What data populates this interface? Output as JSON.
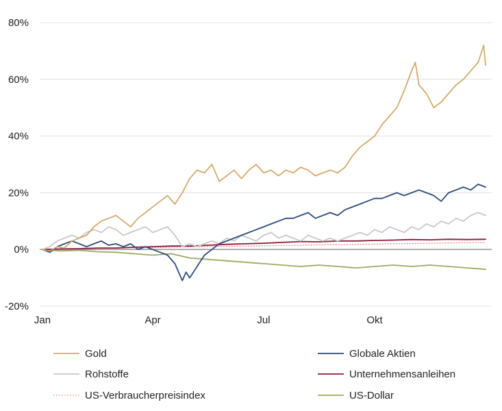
{
  "chart_data": {
    "type": "line",
    "x_ticks": [
      "Jan",
      "Apr",
      "Jul",
      "Okt"
    ],
    "y_ticks": [
      {
        "value": 80,
        "label": "80%",
        "color": "#222222"
      },
      {
        "value": 60,
        "label": "60%",
        "color": "#222222"
      },
      {
        "value": 40,
        "label": "40%",
        "color": "#222222"
      },
      {
        "value": 20,
        "label": "20%",
        "color": "#222222"
      },
      {
        "value": 0,
        "label": "0%",
        "color": "#222222"
      },
      {
        "value": -20,
        "label": "-20%",
        "color": "#e8201c"
      }
    ],
    "ylim": [
      -20,
      80
    ],
    "xlim": [
      0,
      12
    ],
    "grid": true,
    "legend_position": "bottom",
    "series": [
      {
        "name": "Gold",
        "color": "#d4a96a",
        "style": "solid",
        "points": [
          [
            0,
            0
          ],
          [
            0.2,
            -0.5
          ],
          [
            0.4,
            1
          ],
          [
            0.6,
            0.5
          ],
          [
            0.8,
            3
          ],
          [
            1.0,
            4
          ],
          [
            1.2,
            5
          ],
          [
            1.4,
            8
          ],
          [
            1.6,
            10
          ],
          [
            1.8,
            11
          ],
          [
            2.0,
            12
          ],
          [
            2.2,
            10
          ],
          [
            2.4,
            8
          ],
          [
            2.6,
            11
          ],
          [
            2.8,
            13
          ],
          [
            3.0,
            15
          ],
          [
            3.2,
            17
          ],
          [
            3.4,
            19
          ],
          [
            3.6,
            16
          ],
          [
            3.8,
            20
          ],
          [
            4.0,
            25
          ],
          [
            4.2,
            28
          ],
          [
            4.4,
            27
          ],
          [
            4.6,
            30
          ],
          [
            4.8,
            24
          ],
          [
            5.0,
            26
          ],
          [
            5.2,
            28
          ],
          [
            5.4,
            25
          ],
          [
            5.6,
            28
          ],
          [
            5.8,
            30
          ],
          [
            6.0,
            27
          ],
          [
            6.2,
            28
          ],
          [
            6.4,
            26
          ],
          [
            6.6,
            28
          ],
          [
            6.8,
            27
          ],
          [
            7.0,
            29
          ],
          [
            7.2,
            28
          ],
          [
            7.4,
            26
          ],
          [
            7.6,
            27
          ],
          [
            7.8,
            28
          ],
          [
            8.0,
            27
          ],
          [
            8.2,
            29
          ],
          [
            8.4,
            33
          ],
          [
            8.6,
            36
          ],
          [
            8.8,
            38
          ],
          [
            9.0,
            40
          ],
          [
            9.2,
            44
          ],
          [
            9.4,
            47
          ],
          [
            9.6,
            50
          ],
          [
            9.8,
            56
          ],
          [
            10.0,
            63
          ],
          [
            10.1,
            66
          ],
          [
            10.2,
            58
          ],
          [
            10.4,
            55
          ],
          [
            10.6,
            50
          ],
          [
            10.8,
            52
          ],
          [
            11.0,
            55
          ],
          [
            11.2,
            58
          ],
          [
            11.4,
            60
          ],
          [
            11.6,
            63
          ],
          [
            11.8,
            66
          ],
          [
            11.95,
            72
          ],
          [
            12.0,
            65
          ]
        ]
      },
      {
        "name": "Globale Aktien",
        "color": "#2c4a78",
        "style": "solid",
        "points": [
          [
            0,
            0
          ],
          [
            0.2,
            -1
          ],
          [
            0.4,
            1
          ],
          [
            0.6,
            2
          ],
          [
            0.8,
            3
          ],
          [
            1.0,
            2
          ],
          [
            1.2,
            1
          ],
          [
            1.4,
            2
          ],
          [
            1.6,
            3
          ],
          [
            1.8,
            1.5
          ],
          [
            2.0,
            2
          ],
          [
            2.2,
            1
          ],
          [
            2.4,
            2
          ],
          [
            2.6,
            0
          ],
          [
            2.8,
            1
          ],
          [
            3.0,
            0
          ],
          [
            3.2,
            -1
          ],
          [
            3.4,
            -2
          ],
          [
            3.6,
            -5
          ],
          [
            3.8,
            -11
          ],
          [
            3.9,
            -8
          ],
          [
            4.0,
            -10
          ],
          [
            4.2,
            -6
          ],
          [
            4.4,
            -2
          ],
          [
            4.6,
            0
          ],
          [
            4.8,
            2
          ],
          [
            5.0,
            3
          ],
          [
            5.2,
            4
          ],
          [
            5.4,
            5
          ],
          [
            5.6,
            6
          ],
          [
            5.8,
            7
          ],
          [
            6.0,
            8
          ],
          [
            6.2,
            9
          ],
          [
            6.4,
            10
          ],
          [
            6.6,
            11
          ],
          [
            6.8,
            11
          ],
          [
            7.0,
            12
          ],
          [
            7.2,
            13
          ],
          [
            7.4,
            11
          ],
          [
            7.6,
            12
          ],
          [
            7.8,
            13
          ],
          [
            8.0,
            12
          ],
          [
            8.2,
            14
          ],
          [
            8.4,
            15
          ],
          [
            8.6,
            16
          ],
          [
            8.8,
            17
          ],
          [
            9.0,
            18
          ],
          [
            9.2,
            18
          ],
          [
            9.4,
            19
          ],
          [
            9.6,
            20
          ],
          [
            9.8,
            19
          ],
          [
            10.0,
            20
          ],
          [
            10.2,
            21
          ],
          [
            10.4,
            20
          ],
          [
            10.6,
            19
          ],
          [
            10.8,
            17
          ],
          [
            11.0,
            20
          ],
          [
            11.2,
            21
          ],
          [
            11.4,
            22
          ],
          [
            11.6,
            21
          ],
          [
            11.8,
            23
          ],
          [
            12.0,
            22
          ]
        ]
      },
      {
        "name": "Rohstoffe",
        "color": "#c8c8c8",
        "style": "solid",
        "points": [
          [
            0,
            0
          ],
          [
            0.2,
            1
          ],
          [
            0.4,
            3
          ],
          [
            0.6,
            4
          ],
          [
            0.8,
            5
          ],
          [
            1.0,
            4
          ],
          [
            1.2,
            6
          ],
          [
            1.4,
            7
          ],
          [
            1.6,
            6
          ],
          [
            1.8,
            8
          ],
          [
            2.0,
            7
          ],
          [
            2.2,
            5
          ],
          [
            2.4,
            6
          ],
          [
            2.6,
            7
          ],
          [
            2.8,
            8
          ],
          [
            3.0,
            6
          ],
          [
            3.2,
            7
          ],
          [
            3.4,
            8
          ],
          [
            3.6,
            5
          ],
          [
            3.8,
            1
          ],
          [
            4.0,
            2
          ],
          [
            4.2,
            1
          ],
          [
            4.4,
            2
          ],
          [
            4.6,
            3
          ],
          [
            4.8,
            2
          ],
          [
            5.0,
            4
          ],
          [
            5.2,
            3
          ],
          [
            5.4,
            5
          ],
          [
            5.6,
            4
          ],
          [
            5.8,
            3
          ],
          [
            6.0,
            5
          ],
          [
            6.2,
            6
          ],
          [
            6.4,
            4
          ],
          [
            6.6,
            5
          ],
          [
            6.8,
            4
          ],
          [
            7.0,
            3
          ],
          [
            7.2,
            5
          ],
          [
            7.4,
            4
          ],
          [
            7.6,
            3
          ],
          [
            7.8,
            4
          ],
          [
            8.0,
            3
          ],
          [
            8.2,
            4
          ],
          [
            8.4,
            5
          ],
          [
            8.6,
            6
          ],
          [
            8.8,
            5
          ],
          [
            9.0,
            7
          ],
          [
            9.2,
            6
          ],
          [
            9.4,
            8
          ],
          [
            9.6,
            7
          ],
          [
            9.8,
            6
          ],
          [
            10.0,
            8
          ],
          [
            10.2,
            7
          ],
          [
            10.4,
            9
          ],
          [
            10.6,
            8
          ],
          [
            10.8,
            10
          ],
          [
            11.0,
            9
          ],
          [
            11.2,
            11
          ],
          [
            11.4,
            10
          ],
          [
            11.6,
            12
          ],
          [
            11.8,
            13
          ],
          [
            12.0,
            12
          ]
        ]
      },
      {
        "name": "Unternehmensanleihen",
        "color": "#8b1a3a",
        "style": "solid",
        "points": [
          [
            0,
            0
          ],
          [
            0.5,
            0.2
          ],
          [
            1.0,
            0.3
          ],
          [
            1.5,
            0.5
          ],
          [
            2.0,
            0.5
          ],
          [
            2.5,
            0.8
          ],
          [
            3.0,
            1
          ],
          [
            3.5,
            1.2
          ],
          [
            4.0,
            1.2
          ],
          [
            4.5,
            1.5
          ],
          [
            5.0,
            1.8
          ],
          [
            5.5,
            2
          ],
          [
            6.0,
            2.2
          ],
          [
            6.5,
            2.5
          ],
          [
            7.0,
            2.8
          ],
          [
            7.5,
            2.7
          ],
          [
            8.0,
            3
          ],
          [
            8.5,
            3
          ],
          [
            9.0,
            3.2
          ],
          [
            9.5,
            3.3
          ],
          [
            10.0,
            3.5
          ],
          [
            10.5,
            3.4
          ],
          [
            11.0,
            3.6
          ],
          [
            11.5,
            3.5
          ],
          [
            12.0,
            3.6
          ]
        ]
      },
      {
        "name": "US-Verbraucherpreisindex",
        "color": "#f08a8a",
        "style": "dotted",
        "points": [
          [
            0,
            0
          ],
          [
            2,
            0.5
          ],
          [
            4,
            0.9
          ],
          [
            6,
            1.3
          ],
          [
            8,
            1.7
          ],
          [
            10,
            2.1
          ],
          [
            12,
            2.5
          ]
        ]
      },
      {
        "name": "US-Dollar",
        "color": "#9aab5f",
        "style": "solid",
        "points": [
          [
            0,
            0
          ],
          [
            0.5,
            -0.5
          ],
          [
            1.0,
            -0.3
          ],
          [
            1.5,
            -0.8
          ],
          [
            2.0,
            -1
          ],
          [
            2.5,
            -1.5
          ],
          [
            3.0,
            -2
          ],
          [
            3.5,
            -1.5
          ],
          [
            4.0,
            -3
          ],
          [
            4.5,
            -3.5
          ],
          [
            5.0,
            -4
          ],
          [
            5.5,
            -4.5
          ],
          [
            6.0,
            -5
          ],
          [
            6.5,
            -5.5
          ],
          [
            7.0,
            -6
          ],
          [
            7.5,
            -5.5
          ],
          [
            8.0,
            -6
          ],
          [
            8.5,
            -6.5
          ],
          [
            9.0,
            -6
          ],
          [
            9.5,
            -5.5
          ],
          [
            10.0,
            -6
          ],
          [
            10.5,
            -5.5
          ],
          [
            11.0,
            -6
          ],
          [
            11.5,
            -6.5
          ],
          [
            12.0,
            -7
          ]
        ]
      }
    ]
  },
  "legend": [
    {
      "name": "Gold",
      "series": "Gold"
    },
    {
      "name": "Globale Aktien",
      "series": "Globale Aktien"
    },
    {
      "name": "Rohstoffe",
      "series": "Rohstoffe"
    },
    {
      "name": "Unternehmensanleihen",
      "series": "Unternehmensanleihen"
    },
    {
      "name": "US-Verbraucherpreisindex",
      "series": "US-Verbraucherpreisindex"
    },
    {
      "name": "US-Dollar",
      "series": "US-Dollar"
    }
  ]
}
